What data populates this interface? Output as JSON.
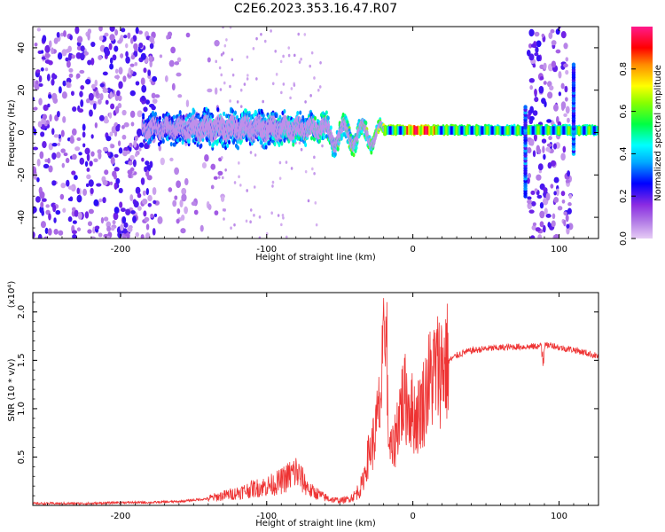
{
  "title": "C2E6.2023.353.16.47.R07",
  "chart_data": [
    {
      "type": "heatmap",
      "title": "C2E6.2023.353.16.47.R07",
      "xlabel": "Height of straight line (km)",
      "ylabel": "Frequency (Hz)",
      "xlim": [
        -260,
        127
      ],
      "ylim": [
        -50,
        50
      ],
      "x_ticks": [
        "-200",
        "-100",
        "0",
        "100"
      ],
      "x_tick_values": [
        -200,
        -100,
        0,
        100
      ],
      "y_ticks": [
        "-40",
        "-20",
        "0",
        "20",
        "40"
      ],
      "y_tick_values": [
        -40,
        -20,
        0,
        20,
        40
      ],
      "colorbar": {
        "label": "Normalized spectral amplitude",
        "ticks": [
          "0.0",
          "0.2",
          "0.4",
          "0.6",
          "0.8"
        ],
        "tick_values": [
          0.0,
          0.2,
          0.4,
          0.6,
          0.8
        ],
        "range": [
          0,
          1
        ],
        "colors": [
          "#e6ccf5",
          "#8a2be2",
          "#0000ff",
          "#00d5ff",
          "#00ff66",
          "#7cff00",
          "#ffff00",
          "#ff8c00",
          "#ff0000",
          "#ff33aa"
        ]
      },
      "band_envelope": {
        "x": [
          -185,
          -160,
          -140,
          -120,
          -100,
          -80,
          -60,
          -45,
          -30,
          -20,
          0,
          20,
          60,
          80,
          100,
          127
        ],
        "half_width_hz": [
          6,
          7,
          8,
          8,
          8,
          7,
          6,
          5,
          4,
          2,
          2,
          2,
          2,
          2,
          2,
          2
        ],
        "peak_amplitude": [
          0.35,
          0.4,
          0.45,
          0.45,
          0.45,
          0.5,
          0.55,
          0.6,
          0.65,
          0.7,
          0.9,
          0.7,
          0.55,
          0.6,
          0.55,
          0.55
        ]
      },
      "noise_regions": [
        {
          "x_range": [
            -260,
            -175
          ],
          "density": "high"
        },
        {
          "x_range": [
            -175,
            -130
          ],
          "density": "low"
        },
        {
          "x_range": [
            79,
            108
          ],
          "density": "high"
        }
      ],
      "spikes": [
        {
          "x": 77,
          "y_range": [
            -30,
            12
          ]
        },
        {
          "x": 110,
          "y_range": [
            -10,
            32
          ]
        }
      ]
    },
    {
      "type": "line",
      "xlabel": "Height of straight line (km)",
      "ylabel": "SNR (10 * v/v)",
      "multiplier": "(x10⁴)",
      "xlim": [
        -260,
        127
      ],
      "ylim": [
        0,
        2.2
      ],
      "x_ticks": [
        "-200",
        "-100",
        "0",
        "100"
      ],
      "x_tick_values": [
        -200,
        -100,
        0,
        100
      ],
      "y_ticks": [
        "0.5",
        "1.0",
        "1.5",
        "2.0"
      ],
      "y_tick_values": [
        0.5,
        1.0,
        1.5,
        2.0
      ],
      "color": "#ee3333",
      "series": [
        {
          "x": [
            -260,
            -240,
            -220,
            -200,
            -180,
            -160,
            -140,
            -130,
            -120,
            -110,
            -100,
            -95,
            -90,
            -85,
            -80,
            -75,
            -70,
            -65,
            -60,
            -55,
            -50,
            -45,
            -40,
            -35,
            -32,
            -30,
            -28,
            -25,
            -22,
            -20,
            -18,
            -16,
            -14,
            -12,
            -10,
            -8,
            -5,
            -3,
            0,
            3,
            5,
            8,
            10,
            15,
            20,
            25,
            30,
            35,
            40,
            50,
            60,
            70,
            80,
            90,
            95,
            100,
            110,
            120,
            127
          ],
          "y": [
            0.02,
            0.02,
            0.02,
            0.03,
            0.03,
            0.04,
            0.07,
            0.1,
            0.13,
            0.17,
            0.2,
            0.22,
            0.25,
            0.3,
            0.35,
            0.25,
            0.15,
            0.12,
            0.08,
            0.06,
            0.05,
            0.06,
            0.1,
            0.2,
            0.4,
            0.55,
            0.6,
            0.8,
            1.1,
            1.5,
            1.2,
            0.6,
            0.55,
            0.7,
            0.9,
            1.05,
            1.1,
            1.05,
            0.95,
            0.9,
            1.0,
            1.1,
            1.25,
            1.38,
            1.45,
            1.5,
            1.55,
            1.58,
            1.6,
            1.62,
            1.63,
            1.64,
            1.64,
            1.65,
            1.66,
            1.63,
            1.61,
            1.57,
            1.54
          ]
        }
      ]
    }
  ]
}
